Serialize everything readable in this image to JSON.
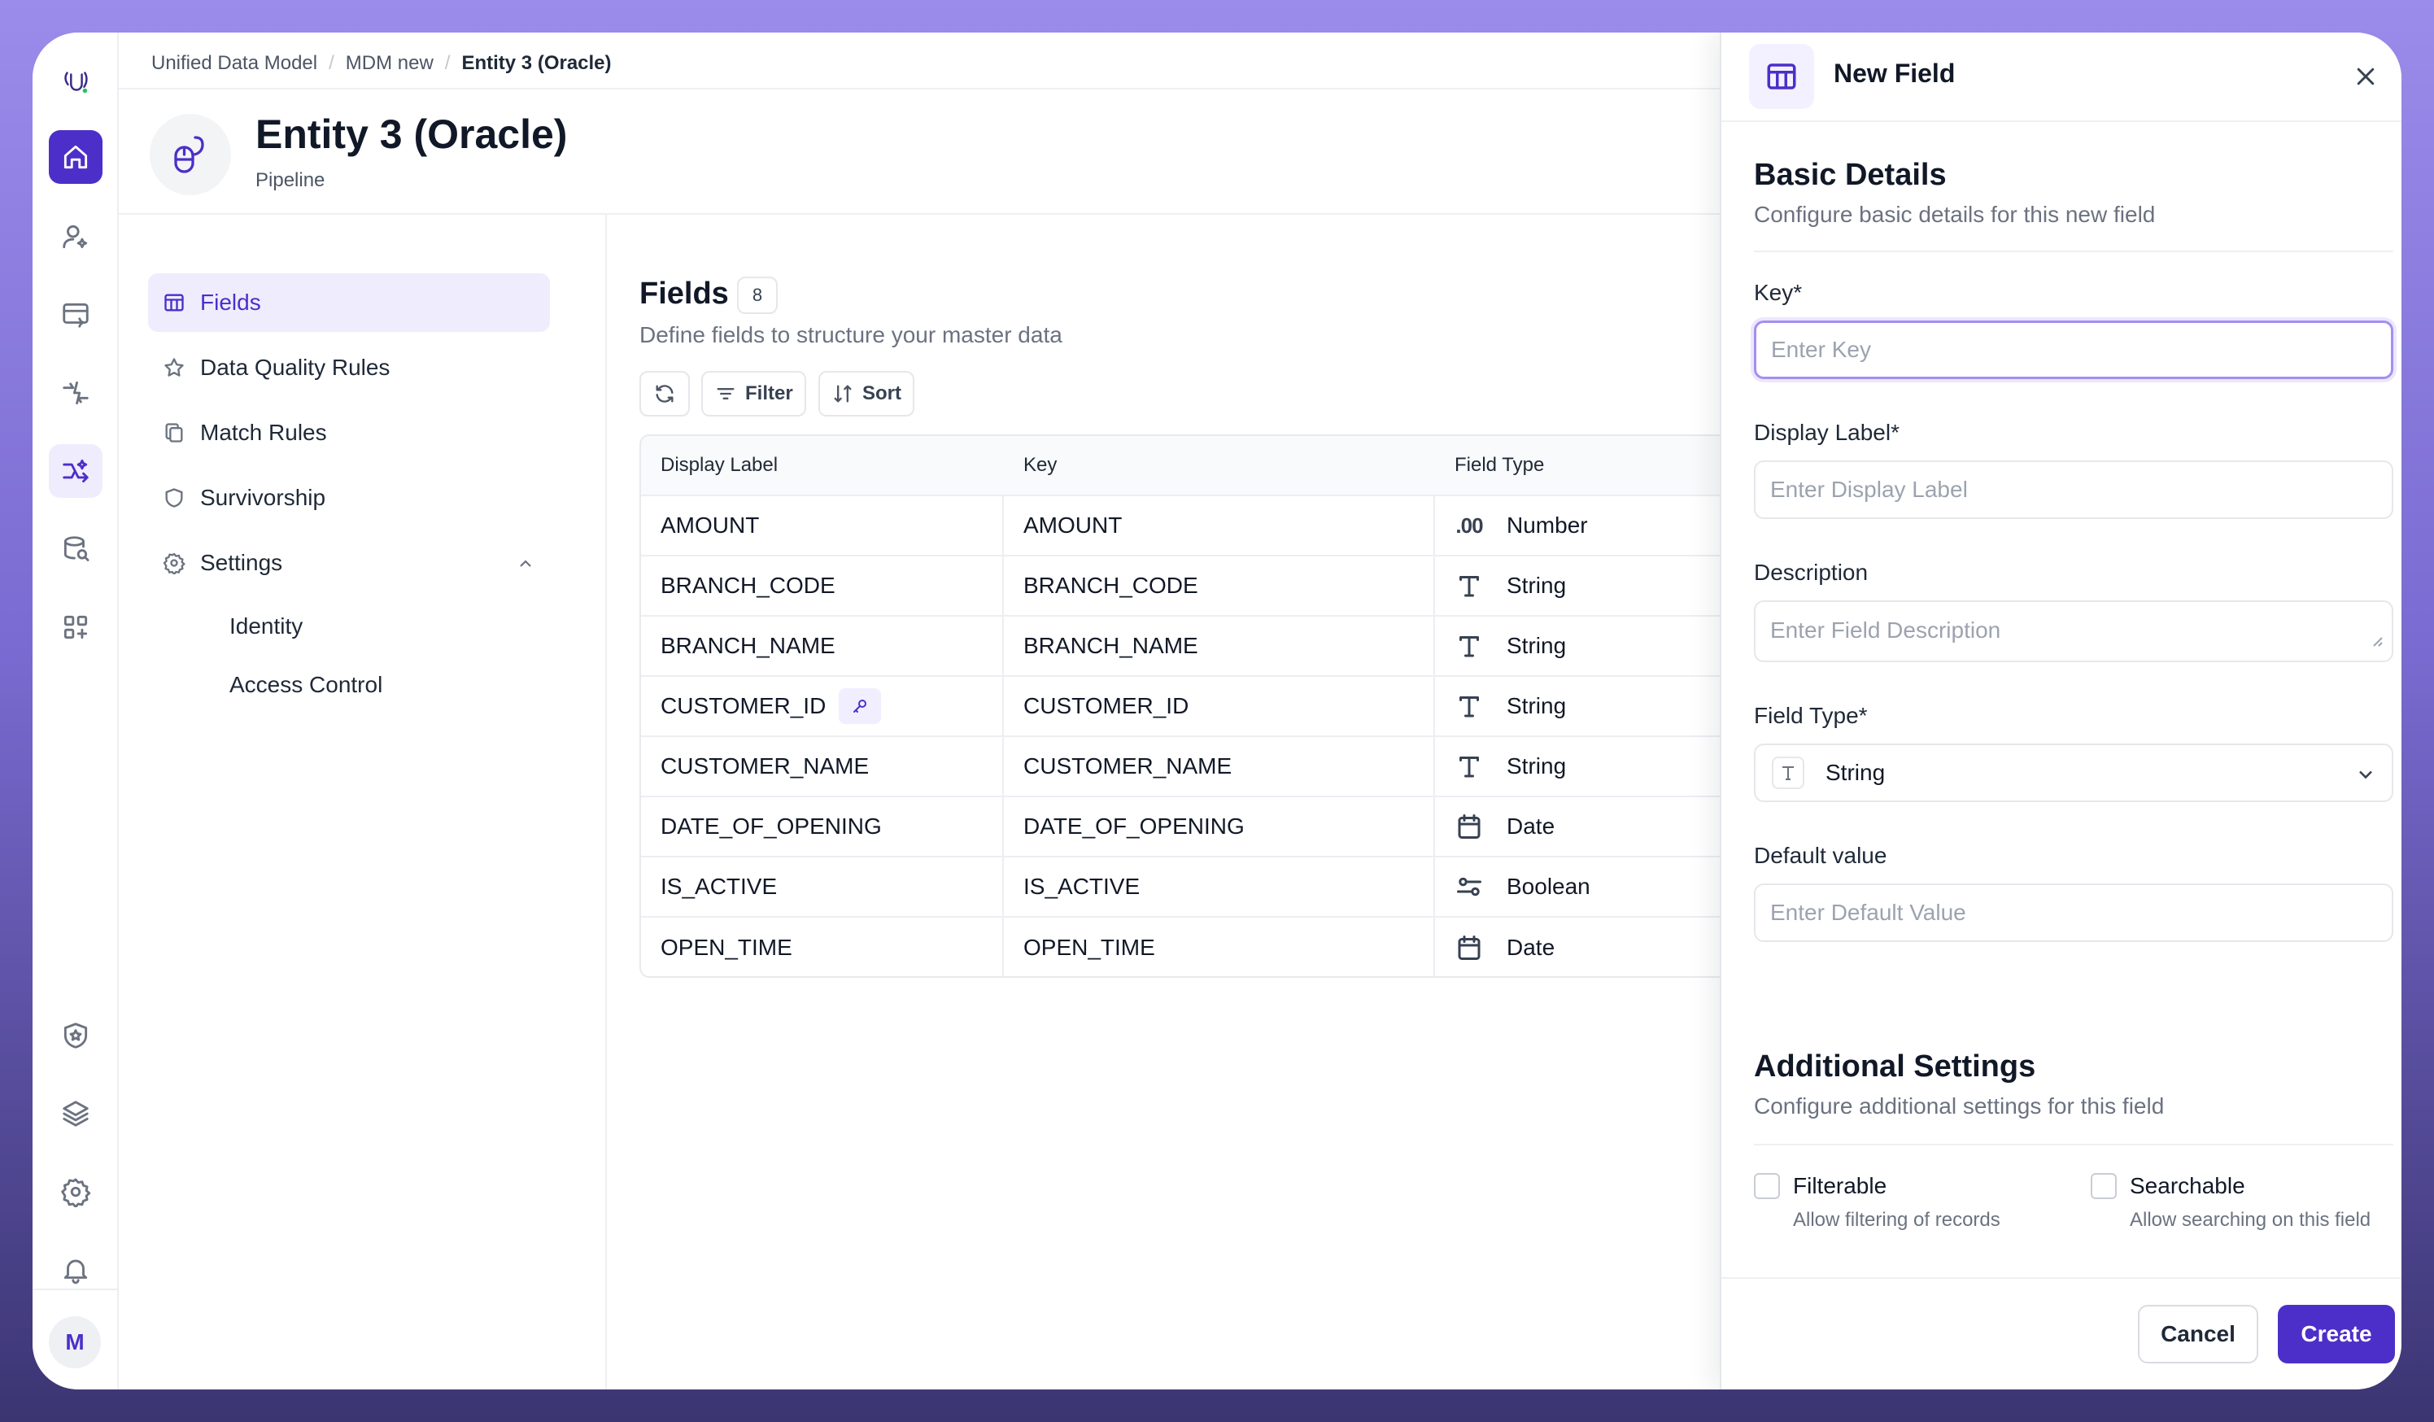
{
  "breadcrumb": [
    "Unified Data Model",
    "MDM new",
    "Entity 3 (Oracle)"
  ],
  "entity": {
    "title": "Entity 3 (Oracle)",
    "subtitle": "Pipeline"
  },
  "user": {
    "initial": "M"
  },
  "rail_icons": [
    "logo-icon",
    "home-icon",
    "users-icon",
    "billing-icon",
    "sparkle-flow-icon",
    "pipeline-icon",
    "database-search-icon",
    "apps-add-icon",
    "shield-star-icon",
    "layers-icon",
    "settings-icon",
    "bell-icon"
  ],
  "nav": {
    "items": [
      {
        "label": "Fields",
        "icon": "table-icon",
        "active": true
      },
      {
        "label": "Data Quality Rules",
        "icon": "star-icon"
      },
      {
        "label": "Match Rules",
        "icon": "copy-icon"
      },
      {
        "label": "Survivorship",
        "icon": "shield-icon"
      },
      {
        "label": "Settings",
        "icon": "gear-icon",
        "expanded": true
      }
    ],
    "sub_items": [
      "Identity",
      "Access Control"
    ]
  },
  "fields": {
    "title": "Fields",
    "count": "8",
    "subtitle": "Define fields to structure your master data",
    "toolbar": {
      "filter": "Filter",
      "sort": "Sort"
    },
    "columns": [
      "Display Label",
      "Key",
      "Field Type"
    ],
    "rows": [
      {
        "label": "AMOUNT",
        "key": "AMOUNT",
        "type": "Number",
        "type_icon": "number-icon",
        "type_glyph": ".00"
      },
      {
        "label": "BRANCH_CODE",
        "key": "BRANCH_CODE",
        "type": "String",
        "type_icon": "text-icon"
      },
      {
        "label": "BRANCH_NAME",
        "key": "BRANCH_NAME",
        "type": "String",
        "type_icon": "text-icon"
      },
      {
        "label": "CUSTOMER_ID",
        "key": "CUSTOMER_ID",
        "type": "String",
        "type_icon": "text-icon",
        "primary_key": true
      },
      {
        "label": "CUSTOMER_NAME",
        "key": "CUSTOMER_NAME",
        "type": "String",
        "type_icon": "text-icon"
      },
      {
        "label": "DATE_OF_OPENING",
        "key": "DATE_OF_OPENING",
        "type": "Date",
        "type_icon": "calendar-icon"
      },
      {
        "label": "IS_ACTIVE",
        "key": "IS_ACTIVE",
        "type": "Boolean",
        "type_icon": "toggle-icon"
      },
      {
        "label": "OPEN_TIME",
        "key": "OPEN_TIME",
        "type": "Date",
        "type_icon": "calendar-icon"
      }
    ]
  },
  "drawer": {
    "title": "New Field",
    "basic": {
      "title": "Basic Details",
      "subtitle": "Configure basic details for this new field",
      "key_label": "Key*",
      "key_placeholder": "Enter Key",
      "display_label": "Display Label*",
      "display_placeholder": "Enter Display Label",
      "description_label": "Description",
      "description_placeholder": "Enter Field Description",
      "field_type_label": "Field Type*",
      "field_type_value": "String",
      "default_label": "Default value",
      "default_placeholder": "Enter Default Value"
    },
    "additional": {
      "title": "Additional Settings",
      "subtitle": "Configure additional settings for this field",
      "filterable": {
        "label": "Filterable",
        "help": "Allow filtering of records",
        "checked": false
      },
      "searchable": {
        "label": "Searchable",
        "help": "Allow searching on this field",
        "checked": false
      }
    },
    "buttons": {
      "cancel": "Cancel",
      "create": "Create"
    }
  },
  "colors": {
    "accent": "#4c2fc9",
    "accent_soft": "#efecfd",
    "border": "#e5e7eb",
    "muted_text": "#6b7280"
  }
}
